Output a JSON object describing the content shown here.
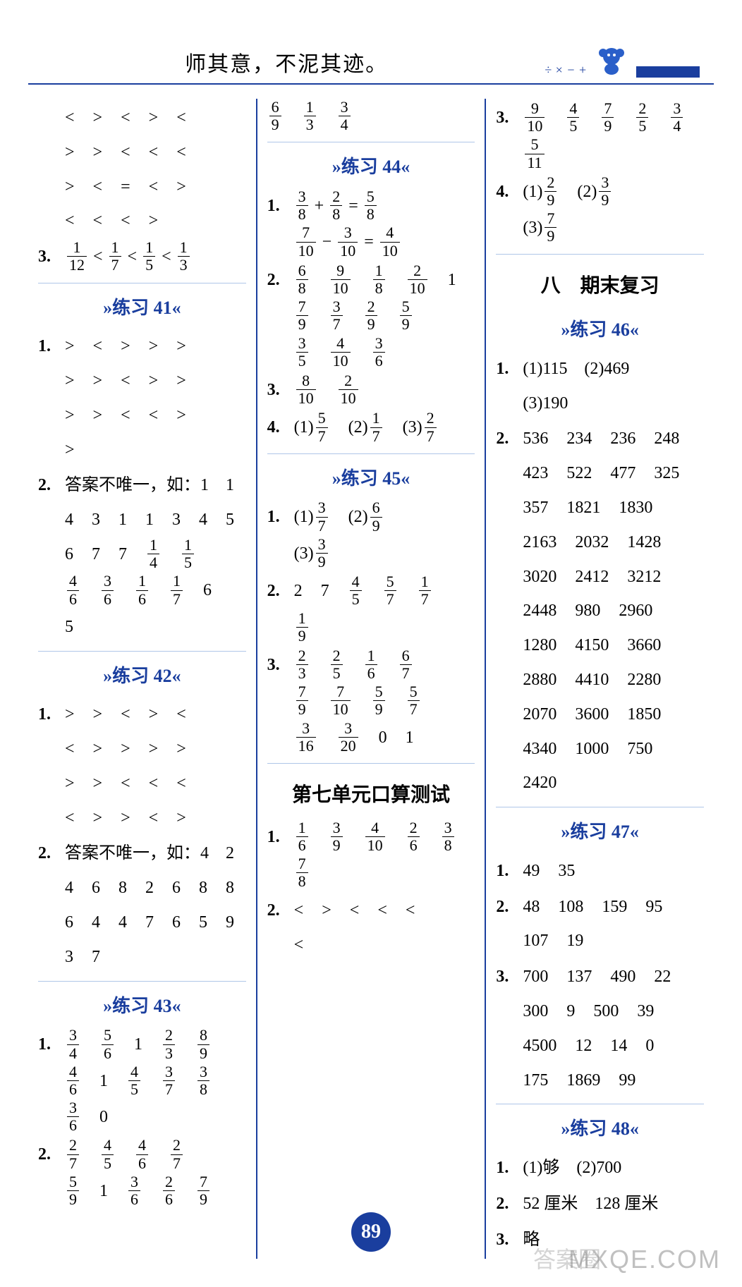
{
  "header": {
    "quote": "师其意，不泥其迹。",
    "mathSyms": "÷ × − +"
  },
  "pageNumber": "89",
  "watermarkMain": "MXQE.COM",
  "watermarkSide": "答案圈",
  "colors": {
    "accent": "#1a3e9e",
    "sepLine": "#7aa0d8",
    "text": "#000000",
    "bg": "#ffffff"
  },
  "col1": {
    "preRows": [
      [
        "<",
        ">",
        "<",
        ">",
        "<"
      ],
      [
        ">",
        ">",
        "<",
        "<",
        "<"
      ],
      [
        ">",
        "<",
        "=",
        "<",
        ">"
      ],
      [
        "<",
        "<",
        "<",
        ">"
      ]
    ],
    "item3": {
      "label": "3.",
      "fracs": [
        [
          "1",
          "12"
        ],
        [
          "1",
          "7"
        ],
        [
          "1",
          "5"
        ],
        [
          "1",
          "3"
        ]
      ],
      "sep": "<"
    },
    "ex41": {
      "title": "»练习 41«",
      "q1rows": [
        [
          ">",
          "<",
          ">",
          ">",
          ">"
        ],
        [
          ">",
          ">",
          "<",
          ">",
          ">"
        ],
        [
          ">",
          ">",
          "<",
          "<",
          ">"
        ],
        [
          ">"
        ]
      ],
      "q2": {
        "label": "2.",
        "lead": "答案不唯一，如：1　1",
        "rows": [
          [
            "4",
            "3",
            "1",
            "1",
            "3",
            "4",
            "5"
          ],
          [
            "6",
            "7",
            "7",
            [
              "1",
              "4"
            ],
            [
              "1",
              "5"
            ]
          ],
          [
            [
              "4",
              "6"
            ],
            [
              "3",
              "6"
            ],
            [
              "1",
              "6"
            ],
            [
              "1",
              "7"
            ],
            "6"
          ],
          [
            "5"
          ]
        ]
      }
    },
    "ex42": {
      "title": "»练习 42«",
      "q1rows": [
        [
          ">",
          ">",
          "<",
          ">",
          "<"
        ],
        [
          "<",
          ">",
          ">",
          ">",
          ">"
        ],
        [
          ">",
          ">",
          "<",
          "<",
          "<"
        ],
        [
          "<",
          ">",
          ">",
          "<",
          ">"
        ]
      ],
      "q2": {
        "label": "2.",
        "lead": "答案不唯一，如：4　2",
        "rows": [
          [
            "4",
            "6",
            "8",
            "2",
            "6",
            "8",
            "8"
          ],
          [
            "6",
            "4",
            "4",
            "7",
            "6",
            "5",
            "9"
          ],
          [
            "3",
            "7"
          ]
        ]
      }
    },
    "ex43": {
      "title": "»练习 43«",
      "q1": {
        "label": "1.",
        "rows": [
          [
            [
              "3",
              "4"
            ],
            [
              "5",
              "6"
            ],
            "1",
            [
              "2",
              "3"
            ],
            [
              "8",
              "9"
            ]
          ],
          [
            [
              "4",
              "6"
            ],
            "1",
            [
              "4",
              "5"
            ],
            [
              "3",
              "7"
            ],
            [
              "3",
              "8"
            ]
          ],
          [
            [
              "3",
              "6"
            ],
            "0"
          ]
        ]
      },
      "q2": {
        "label": "2.",
        "rows": [
          [
            [
              "2",
              "7"
            ],
            [
              "4",
              "5"
            ],
            [
              "4",
              "6"
            ],
            [
              "2",
              "7"
            ]
          ],
          [
            [
              "5",
              "9"
            ],
            "1",
            [
              "3",
              "6"
            ],
            [
              "2",
              "6"
            ],
            [
              "7",
              "9"
            ]
          ]
        ]
      }
    }
  },
  "col2": {
    "topRow": [
      [
        "6",
        "9"
      ],
      [
        "1",
        "3"
      ],
      [
        "3",
        "4"
      ]
    ],
    "ex44": {
      "title": "»练习 44«",
      "q1": {
        "label": "1.",
        "eqs": [
          {
            "a": [
              "3",
              "8"
            ],
            "op": "+",
            "b": [
              "2",
              "8"
            ],
            "r": [
              "5",
              "8"
            ]
          },
          {
            "a": [
              "7",
              "10"
            ],
            "op": "−",
            "b": [
              "3",
              "10"
            ],
            "r": [
              "4",
              "10"
            ]
          }
        ]
      },
      "q2": {
        "label": "2.",
        "rows": [
          [
            [
              "6",
              "8"
            ],
            [
              "9",
              "10"
            ],
            [
              "1",
              "8"
            ],
            [
              "2",
              "10"
            ],
            "1"
          ],
          [
            [
              "7",
              "9"
            ],
            [
              "3",
              "7"
            ],
            [
              "2",
              "9"
            ],
            [
              "5",
              "9"
            ]
          ],
          [
            [
              "3",
              "5"
            ],
            [
              "4",
              "10"
            ],
            [
              "3",
              "6"
            ]
          ]
        ]
      },
      "q3": {
        "label": "3.",
        "rows": [
          [
            [
              "8",
              "10"
            ],
            [
              "2",
              "10"
            ]
          ]
        ]
      },
      "q4": {
        "label": "4.",
        "parts": [
          {
            "p": "(1)",
            "f": [
              "5",
              "7"
            ]
          },
          {
            "p": "(2)",
            "f": [
              "1",
              "7"
            ]
          },
          {
            "p": "(3)",
            "f": [
              "2",
              "7"
            ]
          }
        ]
      }
    },
    "ex45": {
      "title": "»练习 45«",
      "q1": {
        "label": "1.",
        "parts": [
          {
            "p": "(1)",
            "f": [
              "3",
              "7"
            ]
          },
          {
            "p": "(2)",
            "f": [
              "6",
              "9"
            ]
          },
          {
            "p": "(3)",
            "f": [
              "3",
              "9"
            ]
          }
        ]
      },
      "q2": {
        "label": "2.",
        "rows": [
          [
            "2",
            "7",
            [
              "4",
              "5"
            ],
            [
              "5",
              "7"
            ],
            [
              "1",
              "7"
            ]
          ],
          [
            [
              "1",
              "9"
            ]
          ]
        ]
      },
      "q3": {
        "label": "3.",
        "rows": [
          [
            [
              "2",
              "3"
            ],
            [
              "2",
              "5"
            ],
            [
              "1",
              "6"
            ],
            [
              "6",
              "7"
            ]
          ],
          [
            [
              "7",
              "9"
            ],
            [
              "7",
              "10"
            ],
            [
              "5",
              "9"
            ],
            [
              "5",
              "7"
            ]
          ],
          [
            [
              "3",
              "16"
            ],
            [
              "3",
              "20"
            ],
            "0",
            "1"
          ]
        ]
      }
    },
    "unit7": {
      "title": "第七单元口算测试",
      "q1": {
        "label": "1.",
        "rows": [
          [
            [
              "1",
              "6"
            ],
            [
              "3",
              "9"
            ],
            [
              "4",
              "10"
            ],
            [
              "2",
              "6"
            ],
            [
              "3",
              "8"
            ]
          ],
          [
            [
              "7",
              "8"
            ]
          ]
        ]
      },
      "q2": {
        "label": "2.",
        "rows": [
          [
            "<",
            ">",
            "<",
            "<",
            "<"
          ],
          [
            "<"
          ]
        ]
      }
    }
  },
  "col3": {
    "q3": {
      "label": "3.",
      "rows": [
        [
          [
            "9",
            "10"
          ],
          [
            "4",
            "5"
          ],
          [
            "7",
            "9"
          ],
          [
            "2",
            "5"
          ],
          [
            "3",
            "4"
          ]
        ],
        [
          [
            "5",
            "11"
          ]
        ]
      ]
    },
    "q4": {
      "label": "4.",
      "parts": [
        {
          "p": "(1)",
          "f": [
            "2",
            "9"
          ]
        },
        {
          "p": "(2)",
          "f": [
            "3",
            "9"
          ]
        },
        {
          "p": "(3)",
          "f": [
            "7",
            "9"
          ]
        }
      ]
    },
    "section8": "八　期末复习",
    "ex46": {
      "title": "»练习 46«",
      "q1": {
        "label": "1.",
        "text": "(1)115　(2)469",
        "text2": "(3)190"
      },
      "q2": {
        "label": "2.",
        "rows": [
          [
            "536",
            "234",
            "236",
            "248"
          ],
          [
            "423",
            "522",
            "477",
            "325"
          ],
          [
            "357",
            "1821",
            "1830"
          ],
          [
            "2163",
            "2032",
            "1428"
          ],
          [
            "3020",
            "2412",
            "3212"
          ],
          [
            "2448",
            "980",
            "2960"
          ],
          [
            "1280",
            "4150",
            "3660"
          ],
          [
            "2880",
            "4410",
            "2280"
          ],
          [
            "2070",
            "3600",
            "1850"
          ],
          [
            "4340",
            "1000",
            "750"
          ],
          [
            "2420"
          ]
        ]
      }
    },
    "ex47": {
      "title": "»练习 47«",
      "q1": {
        "label": "1.",
        "rows": [
          [
            "49",
            "35"
          ]
        ]
      },
      "q2": {
        "label": "2.",
        "rows": [
          [
            "48",
            "108",
            "159",
            "95"
          ],
          [
            "107",
            "19"
          ]
        ]
      },
      "q3": {
        "label": "3.",
        "rows": [
          [
            "700",
            "137",
            "490",
            "22"
          ],
          [
            "300",
            "9",
            "500",
            "39"
          ],
          [
            "4500",
            "12",
            "14",
            "0"
          ],
          [
            "175",
            "1869",
            "99"
          ]
        ]
      }
    },
    "ex48": {
      "title": "»练习 48«",
      "q1": {
        "label": "1.",
        "text": "(1)够　(2)700"
      },
      "q2": {
        "label": "2.",
        "text": "52 厘米　128 厘米"
      },
      "q3": {
        "label": "3.",
        "text": "略"
      }
    }
  }
}
